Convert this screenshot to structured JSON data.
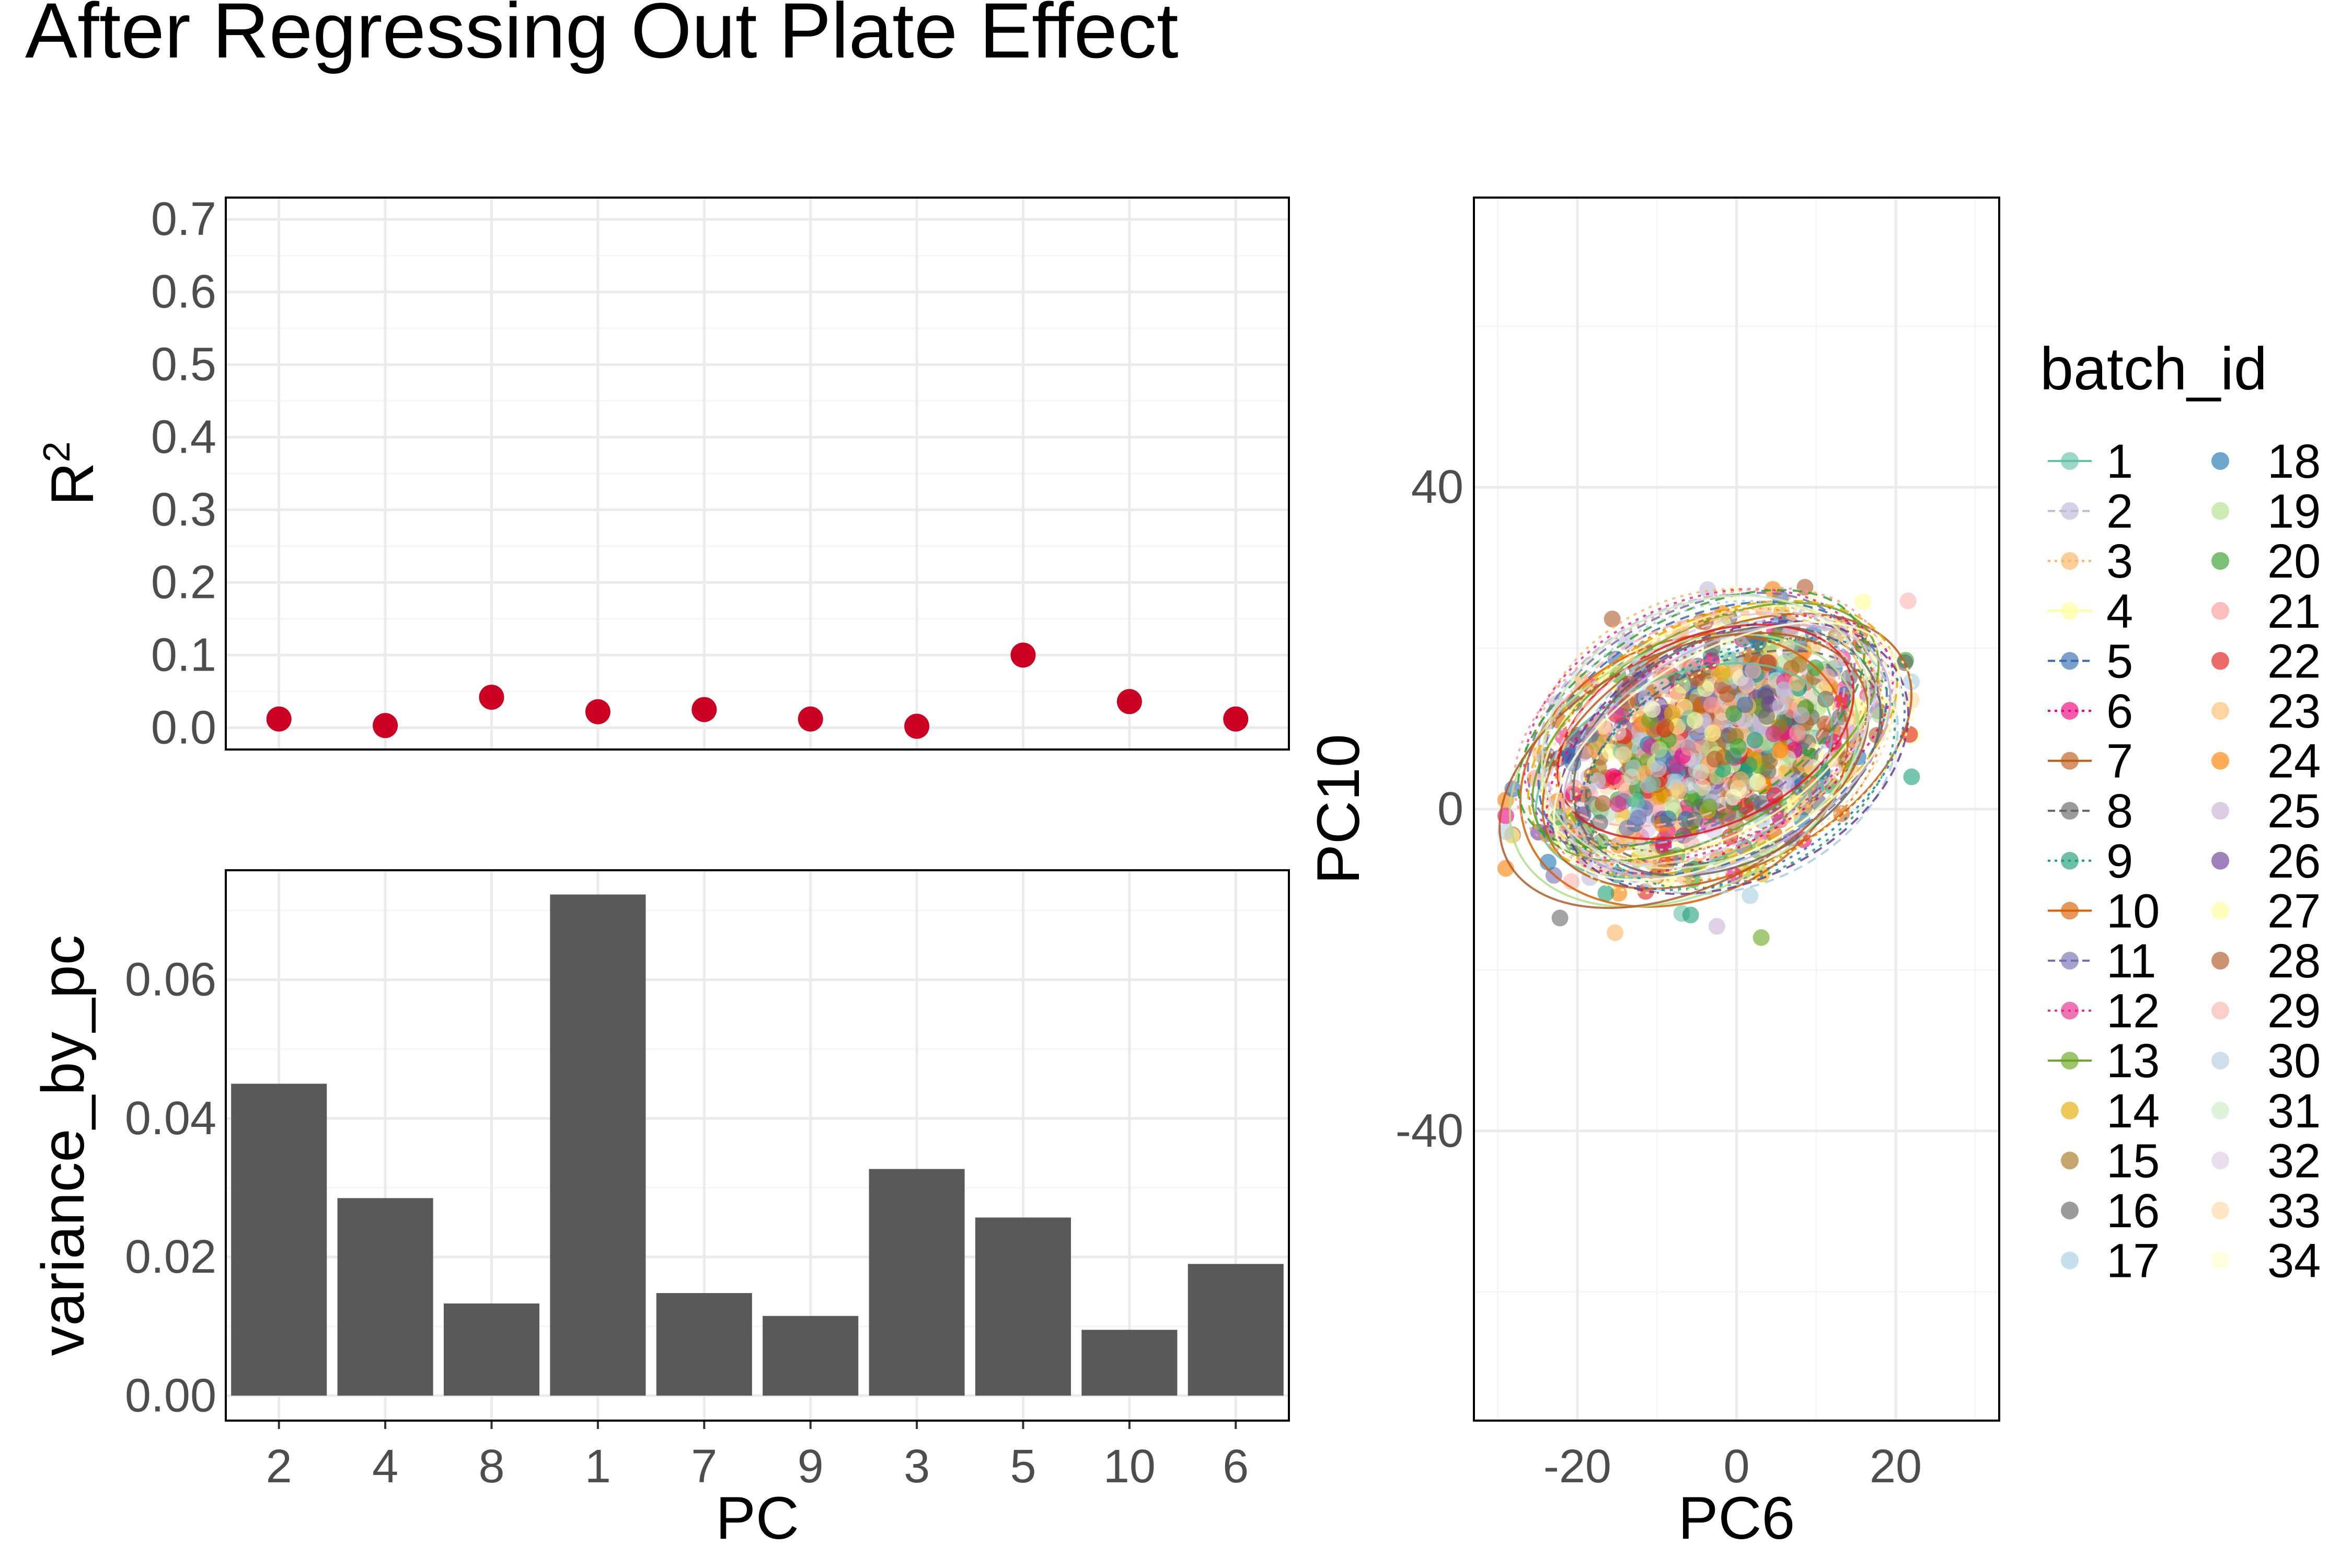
{
  "page": {
    "title": "After Regressing Out Plate Effect"
  },
  "chart_data": [
    {
      "type": "scatter",
      "panel": "r2",
      "categories": [
        "2",
        "4",
        "8",
        "1",
        "7",
        "9",
        "3",
        "5",
        "10",
        "6"
      ],
      "values": [
        0.012,
        0.003,
        0.042,
        0.022,
        0.025,
        0.012,
        0.002,
        0.1,
        0.036,
        0.012
      ],
      "ylabel_base": "R",
      "ylabel_sup": "2",
      "ylim": [
        -0.03,
        0.73
      ],
      "yticks": [
        0.0,
        0.1,
        0.2,
        0.3,
        0.4,
        0.5,
        0.6,
        0.7
      ],
      "ytick_labels": [
        "0.0",
        "0.1",
        "0.2",
        "0.3",
        "0.4",
        "0.5",
        "0.6",
        "0.7"
      ],
      "point_color": "#CC0022",
      "grid": true
    },
    {
      "type": "bar",
      "panel": "variance",
      "categories": [
        "2",
        "4",
        "8",
        "1",
        "7",
        "9",
        "3",
        "5",
        "10",
        "6"
      ],
      "values": [
        0.045,
        0.0285,
        0.0133,
        0.0723,
        0.0148,
        0.0115,
        0.0327,
        0.0257,
        0.0095,
        0.019
      ],
      "xlabel": "PC",
      "ylabel": "variance_by_pc",
      "ylim": [
        -0.0036,
        0.0758
      ],
      "yticks": [
        0.0,
        0.02,
        0.04,
        0.06
      ],
      "ytick_labels": [
        "0.00",
        "0.02",
        "0.04",
        "0.06"
      ],
      "bar_color": "#595959",
      "grid": true
    },
    {
      "type": "scatter",
      "panel": "pca",
      "xlabel": "PC6",
      "ylabel": "PC10",
      "xlim": [
        -33,
        33
      ],
      "ylim": [
        -76,
        76
      ],
      "xticks": [
        -20,
        0,
        20
      ],
      "xtick_labels": [
        "-20",
        "0",
        "20"
      ],
      "yticks": [
        -40,
        0,
        40
      ],
      "ytick_labels": [
        "-40",
        "0",
        "40"
      ],
      "cloud": {
        "center": [
          -3,
          8
        ],
        "sd_major": 9.5,
        "sd_minor": 6.0,
        "angle_deg": 27,
        "n_points": 1300,
        "range_x": [
          -29,
          22
        ],
        "range_y": [
          -19,
          36
        ]
      },
      "legend_title": "batch_id",
      "legend_placement": "right",
      "series": [
        {
          "name": "1",
          "color": "#66C2A5"
        },
        {
          "name": "2",
          "color": "#BEBADA"
        },
        {
          "name": "3",
          "color": "#FDB462"
        },
        {
          "name": "4",
          "color": "#FFFF99"
        },
        {
          "name": "5",
          "color": "#386CB0"
        },
        {
          "name": "6",
          "color": "#F0027F"
        },
        {
          "name": "7",
          "color": "#BF5B17"
        },
        {
          "name": "8",
          "color": "#666666"
        },
        {
          "name": "9",
          "color": "#1B9E77"
        },
        {
          "name": "10",
          "color": "#D95F02"
        },
        {
          "name": "11",
          "color": "#7570B3"
        },
        {
          "name": "12",
          "color": "#E7298A"
        },
        {
          "name": "13",
          "color": "#66A61E"
        },
        {
          "name": "14",
          "color": "#E6AB02"
        },
        {
          "name": "15",
          "color": "#A6761D"
        },
        {
          "name": "16",
          "color": "#666666"
        },
        {
          "name": "17",
          "color": "#A6CEE3"
        },
        {
          "name": "18",
          "color": "#1F78B4"
        },
        {
          "name": "19",
          "color": "#B2DF8A"
        },
        {
          "name": "20",
          "color": "#33A02C"
        },
        {
          "name": "21",
          "color": "#FB9A99"
        },
        {
          "name": "22",
          "color": "#E31A1C"
        },
        {
          "name": "23",
          "color": "#FDBF6F"
        },
        {
          "name": "24",
          "color": "#FF7F00"
        },
        {
          "name": "25",
          "color": "#CAB2D6"
        },
        {
          "name": "26",
          "color": "#6A3D9A"
        },
        {
          "name": "27",
          "color": "#FFFF99"
        },
        {
          "name": "28",
          "color": "#B15928"
        },
        {
          "name": "29",
          "color": "#FBB4AE"
        },
        {
          "name": "30",
          "color": "#B3CDE3"
        },
        {
          "name": "31",
          "color": "#CCEBC5"
        },
        {
          "name": "32",
          "color": "#DECBE4"
        },
        {
          "name": "33",
          "color": "#FED9A6"
        },
        {
          "name": "34",
          "color": "#FFFFCC"
        }
      ]
    }
  ]
}
